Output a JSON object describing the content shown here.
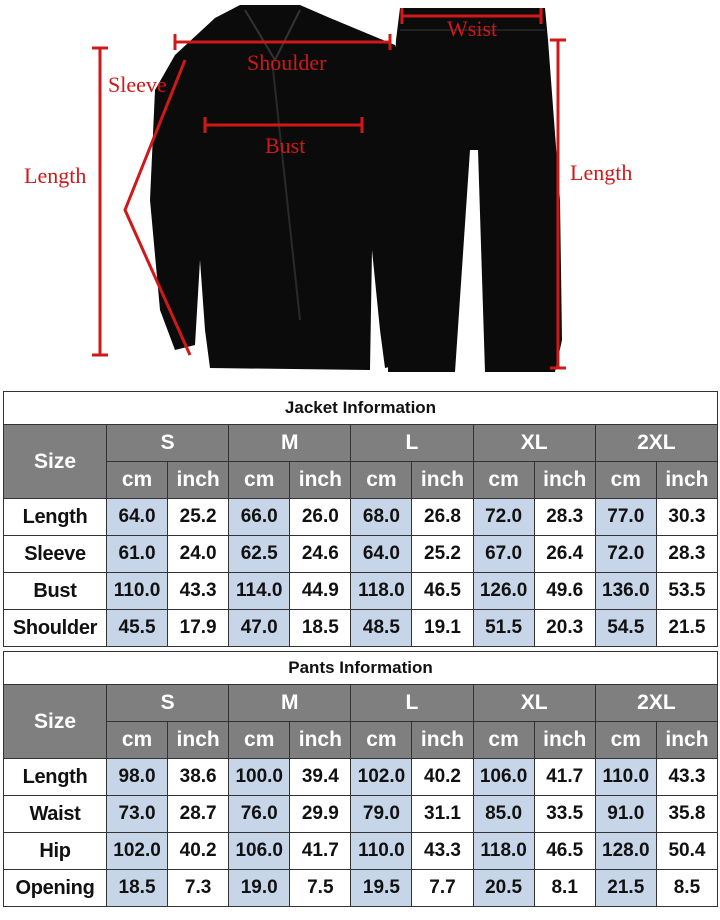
{
  "illustration": {
    "labels": {
      "shoulder": "Shoulder",
      "sleeve": "Sleeve",
      "bust": "Bust",
      "jacket_length": "Length",
      "waist": "Wsist",
      "pants_length": "Length"
    },
    "colors": {
      "garment": "#0b0b0b",
      "measure_line": "#d01818"
    }
  },
  "tables": [
    {
      "title": "Jacket Information",
      "size_label": "Size",
      "sizes": [
        "S",
        "M",
        "L",
        "XL",
        "2XL"
      ],
      "units": [
        "cm",
        "inch"
      ],
      "rows": [
        {
          "label": "Length",
          "values": [
            "64.0",
            "25.2",
            "66.0",
            "26.0",
            "68.0",
            "26.8",
            "72.0",
            "28.3",
            "77.0",
            "30.3"
          ]
        },
        {
          "label": "Sleeve",
          "values": [
            "61.0",
            "24.0",
            "62.5",
            "24.6",
            "64.0",
            "25.2",
            "67.0",
            "26.4",
            "72.0",
            "28.3"
          ]
        },
        {
          "label": "Bust",
          "values": [
            "110.0",
            "43.3",
            "114.0",
            "44.9",
            "118.0",
            "46.5",
            "126.0",
            "49.6",
            "136.0",
            "53.5"
          ]
        },
        {
          "label": "Shoulder",
          "values": [
            "45.5",
            "17.9",
            "47.0",
            "18.5",
            "48.5",
            "19.1",
            "51.5",
            "20.3",
            "54.5",
            "21.5"
          ]
        }
      ]
    },
    {
      "title": "Pants Information",
      "size_label": "Size",
      "sizes": [
        "S",
        "M",
        "L",
        "XL",
        "2XL"
      ],
      "units": [
        "cm",
        "inch"
      ],
      "rows": [
        {
          "label": "Length",
          "values": [
            "98.0",
            "38.6",
            "100.0",
            "39.4",
            "102.0",
            "40.2",
            "106.0",
            "41.7",
            "110.0",
            "43.3"
          ]
        },
        {
          "label": "Waist",
          "values": [
            "73.0",
            "28.7",
            "76.0",
            "29.9",
            "79.0",
            "31.1",
            "85.0",
            "33.5",
            "91.0",
            "35.8"
          ]
        },
        {
          "label": "Hip",
          "values": [
            "102.0",
            "40.2",
            "106.0",
            "41.7",
            "110.0",
            "43.3",
            "118.0",
            "46.5",
            "128.0",
            "50.4"
          ]
        },
        {
          "label": "Opening",
          "values": [
            "18.5",
            "7.3",
            "19.0",
            "7.5",
            "19.5",
            "7.7",
            "20.5",
            "8.1",
            "21.5",
            "8.5"
          ]
        }
      ]
    }
  ]
}
